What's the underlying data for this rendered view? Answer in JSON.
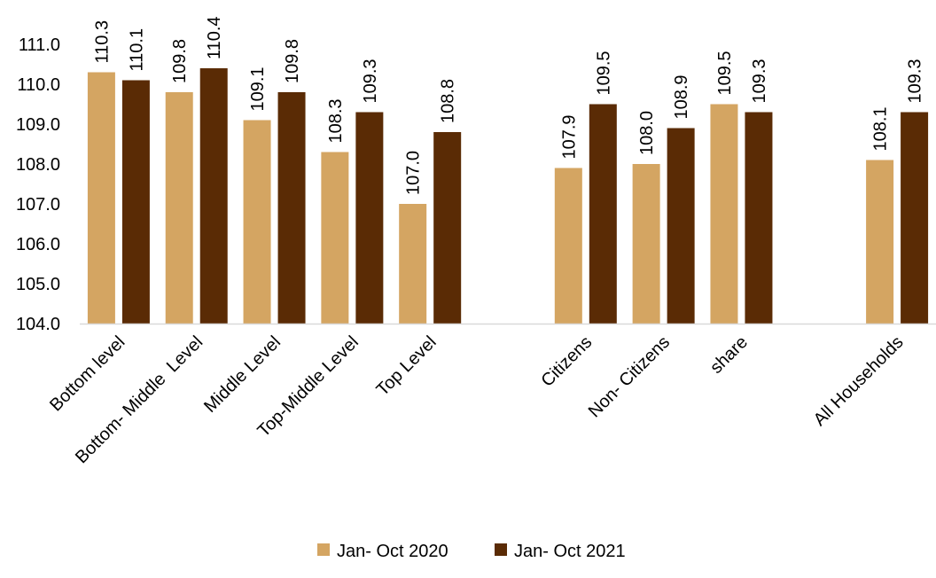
{
  "chart_data": {
    "type": "bar",
    "categories": [
      "Bottom level",
      "Bottom- Middle  Level",
      "Middle Level",
      "Top-Middle Level",
      "Top Level",
      "",
      "Citizens",
      "Non- Citizens",
      "share",
      "",
      "All Households"
    ],
    "series": [
      {
        "name": "Jan- Oct 2020",
        "color": "#D4A562",
        "values": [
          110.3,
          109.8,
          109.1,
          108.3,
          107.0,
          null,
          107.9,
          108.0,
          109.5,
          null,
          108.1
        ]
      },
      {
        "name": "Jan- Oct 2021",
        "color": "#5A2B05",
        "values": [
          110.1,
          110.4,
          109.8,
          109.3,
          108.8,
          null,
          109.5,
          108.9,
          109.3,
          null,
          109.3
        ]
      }
    ],
    "ylim": [
      104.0,
      111.0
    ],
    "yticks": [
      "104.0",
      "105.0",
      "106.0",
      "107.0",
      "108.0",
      "109.0",
      "110.0",
      "111.0"
    ],
    "grid": false,
    "legend_position": "bottom"
  }
}
